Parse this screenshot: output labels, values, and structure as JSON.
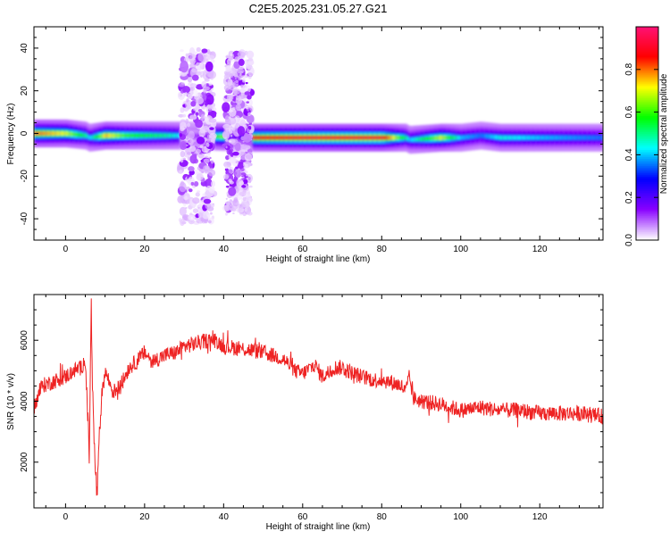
{
  "title": "C2E5.2025.231.05.27.G21",
  "chart_data": [
    {
      "type": "heatmap",
      "xlabel": "Height of straight line (km)",
      "ylabel": "Frequency (Hz)",
      "xlim": [
        -8,
        136
      ],
      "ylim": [
        -50,
        50
      ],
      "xticks": [
        "0",
        "20",
        "40",
        "60",
        "80",
        "100",
        "120"
      ],
      "xtick_values": [
        0,
        20,
        40,
        60,
        80,
        100,
        120
      ],
      "yticks": [
        "-40",
        "-20",
        "0",
        "20",
        "40"
      ],
      "ytick_values": [
        -40,
        -20,
        0,
        20,
        40
      ],
      "colorbar": {
        "label": "Normalized spectral amplitude",
        "range": [
          0,
          1
        ],
        "ticks": [
          "0.0",
          "0.2",
          "0.4",
          "0.6",
          "0.8"
        ],
        "tick_values": [
          0,
          0.2,
          0.4,
          0.6,
          0.8
        ],
        "colormap": [
          "#ffffff",
          "#8800ff",
          "#0000ff",
          "#00ffff",
          "#00ff00",
          "#ffff00",
          "#ff0000",
          "#ff1177"
        ]
      },
      "ridge": {
        "description_points_x_km": [
          -8,
          0,
          5,
          6,
          10,
          15,
          25,
          30,
          48,
          60,
          80,
          86,
          87,
          95,
          100,
          105,
          110,
          120,
          136
        ],
        "center_freq_hz": [
          0,
          0,
          -1,
          -2,
          -1,
          -1,
          -1,
          -1,
          -2,
          -2,
          -2,
          -2,
          -3,
          -2,
          -2,
          -1,
          -2,
          -2,
          -2
        ],
        "peak_amplitude": [
          0.8,
          0.7,
          0.5,
          0.4,
          0.75,
          0.6,
          0.5,
          0.4,
          0.85,
          0.9,
          0.9,
          0.5,
          0.4,
          0.7,
          0.4,
          0.35,
          0.45,
          0.4,
          0.35
        ]
      },
      "noise_regions": [
        {
          "x_range_km": [
            29,
            37.5
          ],
          "freq_range_hz": [
            -42,
            40
          ]
        },
        {
          "x_range_km": [
            40.5,
            47
          ],
          "freq_range_hz": [
            -38,
            38
          ]
        }
      ]
    },
    {
      "type": "line",
      "xlabel": "Height of straight line (km)",
      "ylabel": "SNR (10 * v/v)",
      "xlim": [
        -8,
        136
      ],
      "ylim": [
        500,
        7500
      ],
      "xticks": [
        "0",
        "20",
        "40",
        "60",
        "80",
        "100",
        "120"
      ],
      "xtick_values": [
        0,
        20,
        40,
        60,
        80,
        100,
        120
      ],
      "yticks": [
        "2000",
        "4000",
        "6000"
      ],
      "ytick_values": [
        2000,
        4000,
        6000
      ],
      "series": [
        {
          "color": "#ee2222",
          "x": [
            -8,
            -6,
            -4,
            -2,
            0,
            2,
            4,
            5,
            6,
            6.5,
            7,
            7.5,
            8,
            9,
            10,
            12,
            14,
            16,
            18,
            20,
            22,
            25,
            28,
            30,
            33,
            36,
            38,
            40,
            43,
            46,
            50,
            55,
            58,
            60,
            63,
            65,
            68,
            70,
            73,
            75,
            78,
            80,
            83,
            85,
            86,
            87,
            88,
            90,
            95,
            100,
            105,
            110,
            115,
            120,
            125,
            130,
            136
          ],
          "y": [
            3800,
            4500,
            4600,
            4700,
            4800,
            5000,
            5100,
            5400,
            2200,
            7100,
            3500,
            1800,
            900,
            4000,
            5000,
            4300,
            4500,
            5100,
            5300,
            5600,
            5300,
            5500,
            5600,
            5800,
            5900,
            6000,
            6000,
            5800,
            5750,
            5700,
            5600,
            5400,
            5000,
            4900,
            5200,
            4800,
            5100,
            5100,
            4900,
            4800,
            4700,
            4700,
            4600,
            4500,
            4300,
            4800,
            4100,
            4000,
            3900,
            3700,
            3800,
            3700,
            3700,
            3600,
            3600,
            3600,
            3500
          ]
        }
      ]
    }
  ]
}
